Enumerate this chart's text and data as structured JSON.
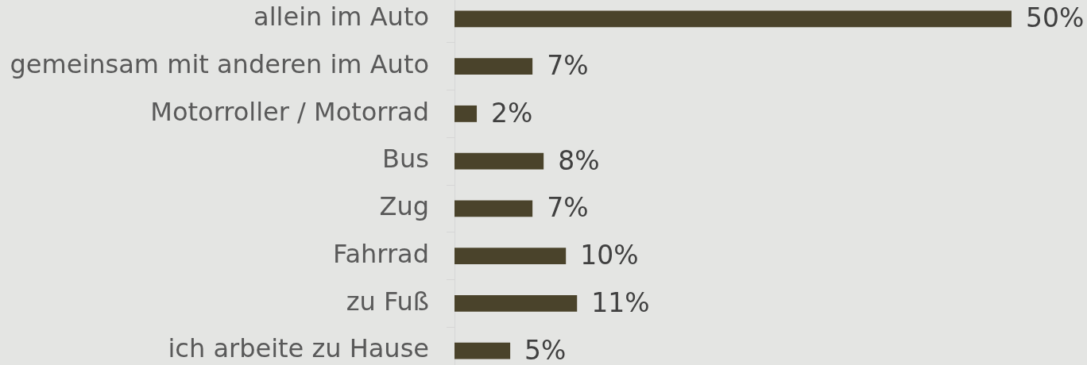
{
  "chart_data": {
    "type": "bar",
    "orientation": "horizontal",
    "categories": [
      "allein im Auto",
      "gemeinsam mit anderen im Auto",
      "Motorroller / Motorrad",
      "Bus",
      "Zug",
      "Fahrrad",
      "zu Fuß",
      "ich arbeite zu Hause"
    ],
    "values": [
      50,
      7,
      2,
      8,
      7,
      10,
      11,
      5
    ],
    "value_labels": [
      "50%",
      "7%",
      "2%",
      "8%",
      "7%",
      "10%",
      "11%",
      "5%"
    ],
    "color": "#4a432b",
    "legend": false,
    "grid": false
  }
}
